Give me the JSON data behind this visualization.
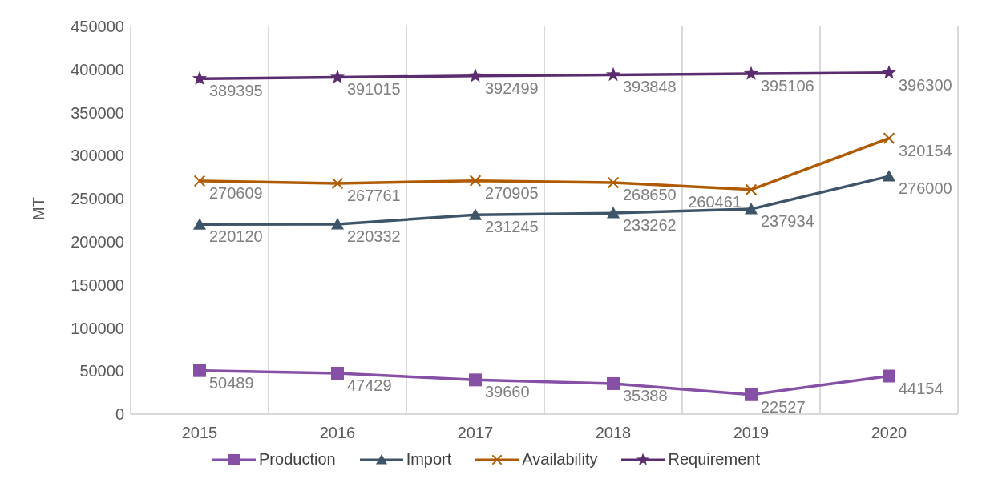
{
  "chart_data": {
    "type": "line",
    "ylabel": "MT",
    "categories": [
      "2015",
      "2016",
      "2017",
      "2018",
      "2019",
      "2020"
    ],
    "series": [
      {
        "name": "Production",
        "color": "#8650a6",
        "marker": "square",
        "values": [
          50489,
          47429,
          39660,
          35388,
          22527,
          44154
        ]
      },
      {
        "name": "Import",
        "color": "#3e5569",
        "marker": "triangle",
        "values": [
          220120,
          220332,
          231245,
          233262,
          237934,
          276000
        ]
      },
      {
        "name": "Availability",
        "color": "#b05a00",
        "marker": "cross",
        "values": [
          270609,
          267761,
          270905,
          268650,
          260461,
          320154
        ]
      },
      {
        "name": "Requirement",
        "color": "#5b2c6f",
        "marker": "star",
        "values": [
          389395,
          391015,
          392499,
          393848,
          395106,
          396300
        ]
      }
    ],
    "ylim": [
      0,
      450000
    ],
    "yticks": [
      0,
      50000,
      100000,
      150000,
      200000,
      250000,
      300000,
      350000,
      400000,
      450000
    ],
    "grid": "x",
    "legend": "bottom",
    "data_labels": true,
    "line_style": "solid"
  }
}
